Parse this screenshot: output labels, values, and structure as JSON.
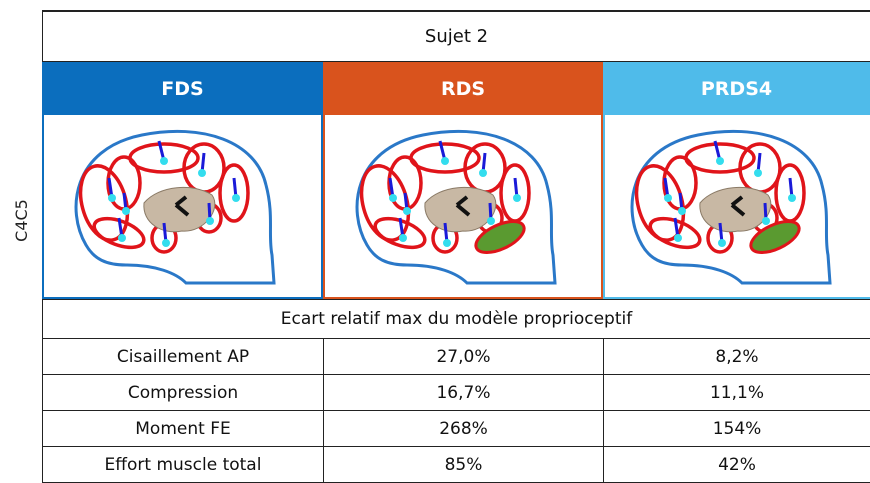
{
  "title": "Sujet 2",
  "row_label": "C4C5",
  "columns": [
    "FDS",
    "RDS",
    "PRDS4"
  ],
  "subtitle": "Ecart relatif max du modèle proprioceptif",
  "rows": [
    [
      "Cisaillement AP",
      "27,0%",
      "8,2%"
    ],
    [
      "Compression",
      "16,7%",
      "11,1%"
    ],
    [
      "Moment FE",
      "268%",
      "154%"
    ],
    [
      "Effort muscle total",
      "85%",
      "42%"
    ]
  ]
}
